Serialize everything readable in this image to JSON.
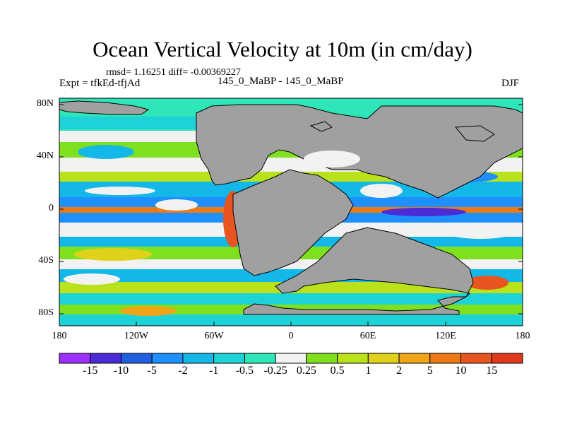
{
  "title": "Ocean Vertical Velocity at 10m (in cm/day)",
  "stats": "rmsd= 1.16251 diff= -0.00369227",
  "left_label": "Expt = tfkEd-tfjAd",
  "center_label": "145_0_MaBP - 145_0_MaBP",
  "right_label": "DJF",
  "lat_ticks": [
    "80N",
    "40N",
    "0",
    "40S",
    "80S"
  ],
  "lon_ticks": [
    "180",
    "120W",
    "60W",
    "0",
    "60E",
    "120E",
    "180"
  ],
  "colorbar": {
    "labels": [
      "-15",
      "-10",
      "-5",
      "-2",
      "-1",
      "-0.5",
      "-0.25",
      "0.25",
      "0.5",
      "1",
      "2",
      "5",
      "10",
      "15"
    ],
    "colors": [
      "#9b30ff",
      "#4b2bd6",
      "#1f5fe0",
      "#1e90ff",
      "#13b8e8",
      "#1ed3d8",
      "#2ee6b8",
      "#f2f2f2",
      "#7fe020",
      "#b9e21a",
      "#e0d21a",
      "#f0a418",
      "#ee7a16",
      "#e8551e",
      "#e03a1a"
    ]
  },
  "colors": {
    "land": "#a0a0a0",
    "near_zero": "#f2f2f2",
    "equatorial_upwelling": "#ee7a16",
    "coastal_upwelling": "#e8551e"
  }
}
